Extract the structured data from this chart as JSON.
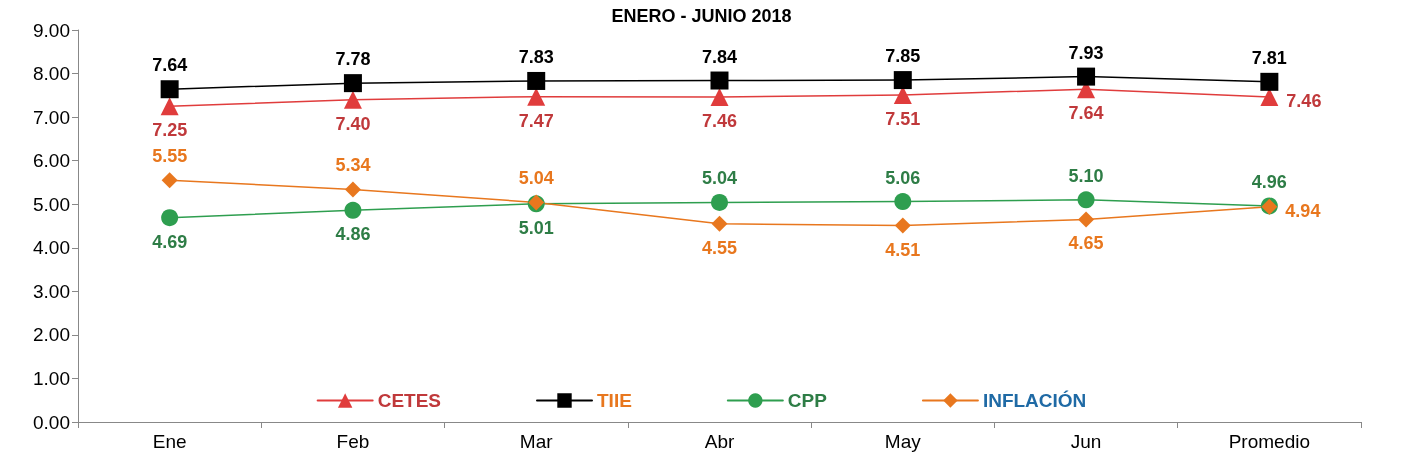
{
  "chart_data": {
    "type": "line",
    "title": "ENERO - JUNIO 2018",
    "categories": [
      "Ene",
      "Feb",
      "Mar",
      "Abr",
      "May",
      "Jun",
      "Promedio"
    ],
    "series": [
      {
        "name": "CETES",
        "color": "#e03c3c",
        "marker": "triangle",
        "values": [
          7.25,
          7.4,
          7.47,
          7.46,
          7.51,
          7.64,
          7.46
        ],
        "value_labels": [
          "7.25",
          "7.40",
          "7.47",
          "7.46",
          "7.51",
          "7.64",
          "7.46"
        ]
      },
      {
        "name": "TIIE",
        "color": "#000000",
        "marker": "square",
        "values": [
          7.64,
          7.78,
          7.83,
          7.84,
          7.85,
          7.93,
          7.81
        ],
        "value_labels": [
          "7.64",
          "7.78",
          "7.83",
          "7.84",
          "7.85",
          "7.93",
          "7.81"
        ]
      },
      {
        "name": "CPP",
        "color": "#2e9e4f",
        "marker": "circle",
        "values": [
          4.69,
          4.86,
          5.01,
          5.04,
          5.06,
          5.1,
          4.96
        ],
        "value_labels": [
          "4.69",
          "4.86",
          "5.01",
          "5.04",
          "5.06",
          "5.10",
          "4.96"
        ]
      },
      {
        "name": "INFLACIÓN",
        "color": "#e8771e",
        "marker": "diamond",
        "values": [
          5.55,
          5.34,
          5.04,
          4.55,
          4.51,
          4.65,
          4.94
        ],
        "value_labels": [
          "5.55",
          "5.34",
          "5.04",
          "4.55",
          "4.51",
          "4.65",
          "4.94"
        ]
      }
    ],
    "ylim": [
      0,
      9
    ],
    "yticks": [
      {
        "value": 0,
        "label": "0.00"
      },
      {
        "value": 1,
        "label": "1.00"
      },
      {
        "value": 2,
        "label": "2.00"
      },
      {
        "value": 3,
        "label": "3.00"
      },
      {
        "value": 4,
        "label": "4.00"
      },
      {
        "value": 5,
        "label": "5.00"
      },
      {
        "value": 6,
        "label": "6.00"
      },
      {
        "value": 7,
        "label": "7.00"
      },
      {
        "value": 8,
        "label": "8.00"
      },
      {
        "value": 9,
        "label": "9.00"
      }
    ],
    "grid": false,
    "legend": "bottom",
    "line_style": "solid"
  }
}
